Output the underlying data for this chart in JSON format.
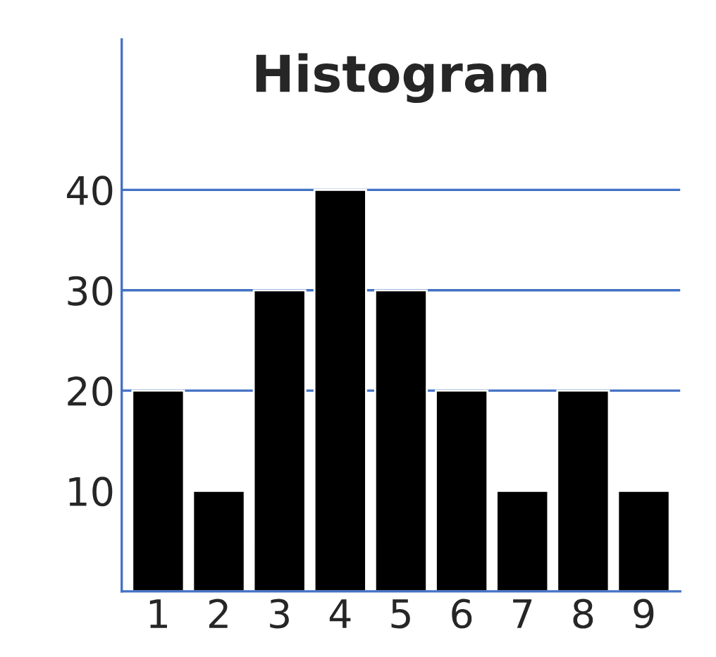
{
  "chart_data": {
    "type": "bar",
    "title": "Histogram",
    "categories": [
      "1",
      "2",
      "3",
      "4",
      "5",
      "6",
      "7",
      "8",
      "9"
    ],
    "values": [
      20,
      10,
      30,
      40,
      30,
      20,
      10,
      20,
      10
    ],
    "color": "#000000",
    "ylim": [
      0,
      55
    ],
    "yticks": [
      10,
      20,
      30,
      40
    ],
    "grid": false,
    "ref_lines": [
      {
        "axis": "y",
        "value": 20,
        "color": "#4472c4"
      },
      {
        "axis": "y",
        "value": 30,
        "color": "#4472c4"
      },
      {
        "axis": "y",
        "value": 40,
        "color": "#4472c4"
      }
    ]
  }
}
